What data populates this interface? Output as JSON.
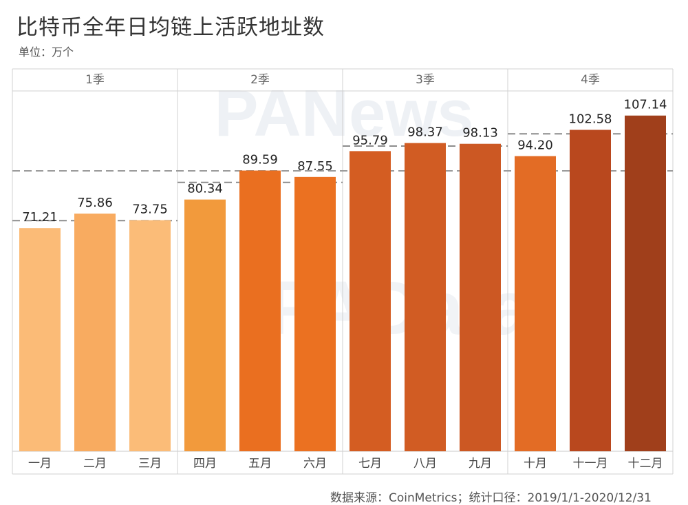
{
  "title": "比特币全年日均链上活跃地址数",
  "unit": "单位：万个",
  "source": "数据来源：CoinMetrics；统计口径：2019/1/1-2020/12/31",
  "watermarks": [
    "PANews",
    "PAData"
  ],
  "chart_data": {
    "type": "bar",
    "title": "比特币全年日均链上活跃地址数",
    "ylabel": "",
    "ylim": [
      0,
      115
    ],
    "groups": [
      {
        "label": "1季",
        "categories": [
          "一月",
          "二月",
          "三月"
        ],
        "values": [
          71.21,
          75.86,
          73.75
        ],
        "value_labels": [
          "71.21",
          "75.86",
          "73.75"
        ],
        "average": 73.6
      },
      {
        "label": "2季",
        "categories": [
          "四月",
          "五月",
          "六月"
        ],
        "values": [
          80.34,
          89.59,
          87.55
        ],
        "value_labels": [
          "80.34",
          "89.59",
          "87.55"
        ],
        "average": 85.8
      },
      {
        "label": "3季",
        "categories": [
          "七月",
          "八月",
          "九月"
        ],
        "values": [
          95.79,
          98.37,
          98.13
        ],
        "value_labels": [
          "95.79",
          "98.37",
          "98.13"
        ],
        "average": 97.4
      },
      {
        "label": "4季",
        "categories": [
          "十月",
          "十一月",
          "十二月"
        ],
        "values": [
          94.2,
          102.58,
          107.14
        ],
        "value_labels": [
          "94.20",
          "102.58",
          "107.14"
        ],
        "average": 101.3
      }
    ],
    "overall_average": 89.5,
    "colors": [
      "#fbbb77",
      "#f8ab60",
      "#fbbc78",
      "#f29a3c",
      "#ea6f20",
      "#eb7121",
      "#d45d22",
      "#d15c23",
      "#cc5823",
      "#e36c25",
      "#b9481e",
      "#a03f1b"
    ],
    "grid": false
  }
}
